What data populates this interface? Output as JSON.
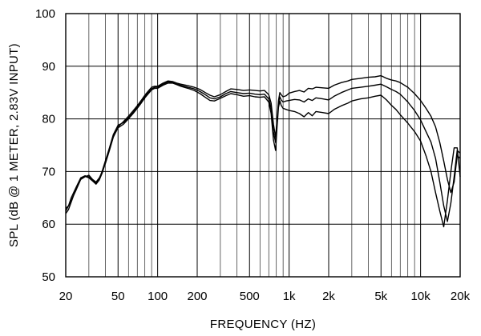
{
  "chart_data": {
    "type": "line",
    "xlabel": "FREQUENCY  (HZ)",
    "ylabel": "SPL (dB @ 1 METER, 2.83V INPUT)",
    "x_scale": "log",
    "xlim": [
      20,
      20000
    ],
    "ylim": [
      50,
      100
    ],
    "y_ticks": [
      50,
      60,
      70,
      80,
      90,
      100
    ],
    "y_tick_labels": [
      "50",
      "60",
      "70",
      "80",
      "90",
      "100"
    ],
    "x_major_ticks": [
      20,
      50,
      100,
      200,
      500,
      1000,
      2000,
      5000,
      10000,
      20000
    ],
    "x_tick_labels": [
      "20",
      "50",
      "100",
      "200",
      "500",
      "1k",
      "2k",
      "5k",
      "10k",
      "20k"
    ],
    "x_minor_gridlines": [
      30,
      40,
      60,
      70,
      80,
      90,
      300,
      400,
      600,
      700,
      800,
      900,
      3000,
      4000,
      6000,
      7000,
      8000,
      9000
    ],
    "grid": true,
    "legend": "none",
    "series": [
      {
        "x": [
          20,
          21,
          22,
          24,
          26,
          28,
          30,
          32,
          34,
          36,
          38,
          40,
          43,
          46,
          50,
          55,
          60,
          65,
          70,
          75,
          80,
          85,
          90,
          95,
          100,
          110,
          120,
          130,
          140,
          150,
          170,
          190,
          210,
          230,
          250,
          270,
          300,
          330,
          360,
          400,
          450,
          500,
          550,
          600,
          650,
          700,
          730,
          760,
          790,
          810,
          830,
          850,
          870,
          900,
          950,
          1000,
          1100,
          1200,
          1300,
          1400,
          1500,
          1600,
          1800,
          2000,
          2200,
          2500,
          2800,
          3000,
          3500,
          4000,
          4500,
          5000,
          5500,
          6000,
          6500,
          7000,
          8000,
          9000,
          10000,
          11000,
          12000,
          13000,
          14000,
          15000,
          16000,
          17000,
          18000,
          19000,
          20000
        ],
        "y": [
          63,
          63.5,
          64.5,
          66.5,
          68.5,
          69,
          69.3,
          68.5,
          68,
          68.8,
          70,
          71.5,
          74,
          76.5,
          78.5,
          79.5,
          80.5,
          81.5,
          82.5,
          83.5,
          84.5,
          85.3,
          86,
          86.2,
          86.2,
          86.8,
          87.2,
          87.1,
          86.8,
          86.6,
          86.3,
          86,
          85.6,
          85,
          84.5,
          84.2,
          84.6,
          85.2,
          85.7,
          85.6,
          85.4,
          85.5,
          85.4,
          85.3,
          85.4,
          84.6,
          83,
          79,
          76.5,
          80,
          83.5,
          85,
          84.6,
          84.2,
          84.4,
          84.9,
          85.2,
          85.4,
          85.1,
          85.8,
          85.7,
          86,
          85.9,
          85.8,
          86.4,
          86.9,
          87.2,
          87.5,
          87.7,
          87.9,
          88,
          88.2,
          87.7,
          87.4,
          87.2,
          86.9,
          86,
          84.8,
          83.5,
          82,
          80.5,
          78.5,
          75.5,
          72,
          68.5,
          66,
          68,
          73,
          72.5
        ]
      },
      {
        "x": [
          20,
          21,
          22,
          24,
          26,
          28,
          30,
          32,
          34,
          36,
          38,
          40,
          43,
          46,
          50,
          55,
          60,
          65,
          70,
          75,
          80,
          85,
          90,
          95,
          100,
          110,
          120,
          130,
          140,
          150,
          170,
          190,
          210,
          230,
          250,
          270,
          300,
          330,
          360,
          400,
          450,
          500,
          550,
          600,
          650,
          700,
          730,
          760,
          790,
          810,
          830,
          850,
          870,
          900,
          950,
          1000,
          1100,
          1200,
          1300,
          1400,
          1500,
          1600,
          1800,
          2000,
          2200,
          2500,
          2800,
          3000,
          3500,
          4000,
          4500,
          5000,
          5500,
          6000,
          6500,
          7000,
          8000,
          9000,
          10000,
          11000,
          12000,
          13000,
          14000,
          15000,
          16000,
          17000,
          18000,
          19000,
          20000
        ],
        "y": [
          62.5,
          63.5,
          65,
          67,
          68.8,
          69.2,
          69,
          68.4,
          67.8,
          68.6,
          70.2,
          72,
          74.5,
          77,
          78.8,
          79.3,
          80.2,
          81.2,
          82.2,
          83.2,
          84.2,
          85,
          85.7,
          86,
          86,
          86.6,
          87,
          86.9,
          86.6,
          86.4,
          86,
          85.7,
          85.2,
          84.6,
          84,
          83.8,
          84.2,
          84.8,
          85.2,
          85,
          84.8,
          84.9,
          84.7,
          84.6,
          84.7,
          83.8,
          82,
          77.5,
          75.5,
          79.5,
          83,
          84.2,
          83.6,
          83.2,
          83.4,
          83.5,
          83.7,
          83.6,
          83.2,
          83.8,
          83.5,
          84,
          83.8,
          83.6,
          84.3,
          85,
          85.5,
          85.8,
          86,
          86.2,
          86.4,
          86.6,
          86.1,
          85.6,
          85.2,
          84.7,
          83.2,
          81.6,
          79.8,
          77.6,
          75.6,
          72.5,
          68,
          63.5,
          60.5,
          64,
          69,
          74,
          73.5
        ]
      },
      {
        "x": [
          20,
          21,
          22,
          24,
          26,
          28,
          30,
          32,
          34,
          36,
          38,
          40,
          43,
          46,
          50,
          55,
          60,
          65,
          70,
          75,
          80,
          85,
          90,
          95,
          100,
          110,
          120,
          130,
          140,
          150,
          170,
          190,
          210,
          230,
          250,
          270,
          300,
          330,
          360,
          400,
          450,
          500,
          550,
          600,
          650,
          700,
          730,
          760,
          790,
          810,
          830,
          850,
          870,
          900,
          950,
          1000,
          1100,
          1200,
          1300,
          1400,
          1500,
          1600,
          1800,
          2000,
          2200,
          2500,
          2800,
          3000,
          3500,
          4000,
          4500,
          5000,
          5500,
          6000,
          6500,
          7000,
          8000,
          9000,
          10000,
          11000,
          12000,
          13000,
          14000,
          15000,
          16000,
          17000,
          18000,
          19000,
          20000
        ],
        "y": [
          62,
          62.8,
          64.2,
          66.8,
          68.6,
          69.1,
          68.8,
          68.2,
          67.6,
          68.4,
          69.8,
          71.6,
          74.2,
          76.6,
          78.3,
          79,
          80,
          81,
          82,
          83,
          84,
          84.8,
          85.5,
          85.8,
          85.8,
          86.4,
          86.8,
          86.8,
          86.5,
          86.2,
          85.8,
          85.4,
          84.8,
          84.1,
          83.5,
          83.4,
          83.9,
          84.4,
          84.8,
          84.6,
          84.3,
          84.4,
          84.2,
          84.1,
          84.2,
          83.2,
          81,
          76,
          74,
          78.5,
          82.2,
          83.4,
          82.6,
          82,
          81.8,
          81.6,
          81.4,
          81,
          80.4,
          81.2,
          80.6,
          81.4,
          81.2,
          81,
          81.8,
          82.5,
          83,
          83.4,
          83.8,
          84,
          84.3,
          84.5,
          83.6,
          82.6,
          81.8,
          80.8,
          79.2,
          77.6,
          75.8,
          73,
          70,
          66,
          62.5,
          59.5,
          64.5,
          70,
          74.5,
          74.5,
          69
        ]
      }
    ]
  }
}
